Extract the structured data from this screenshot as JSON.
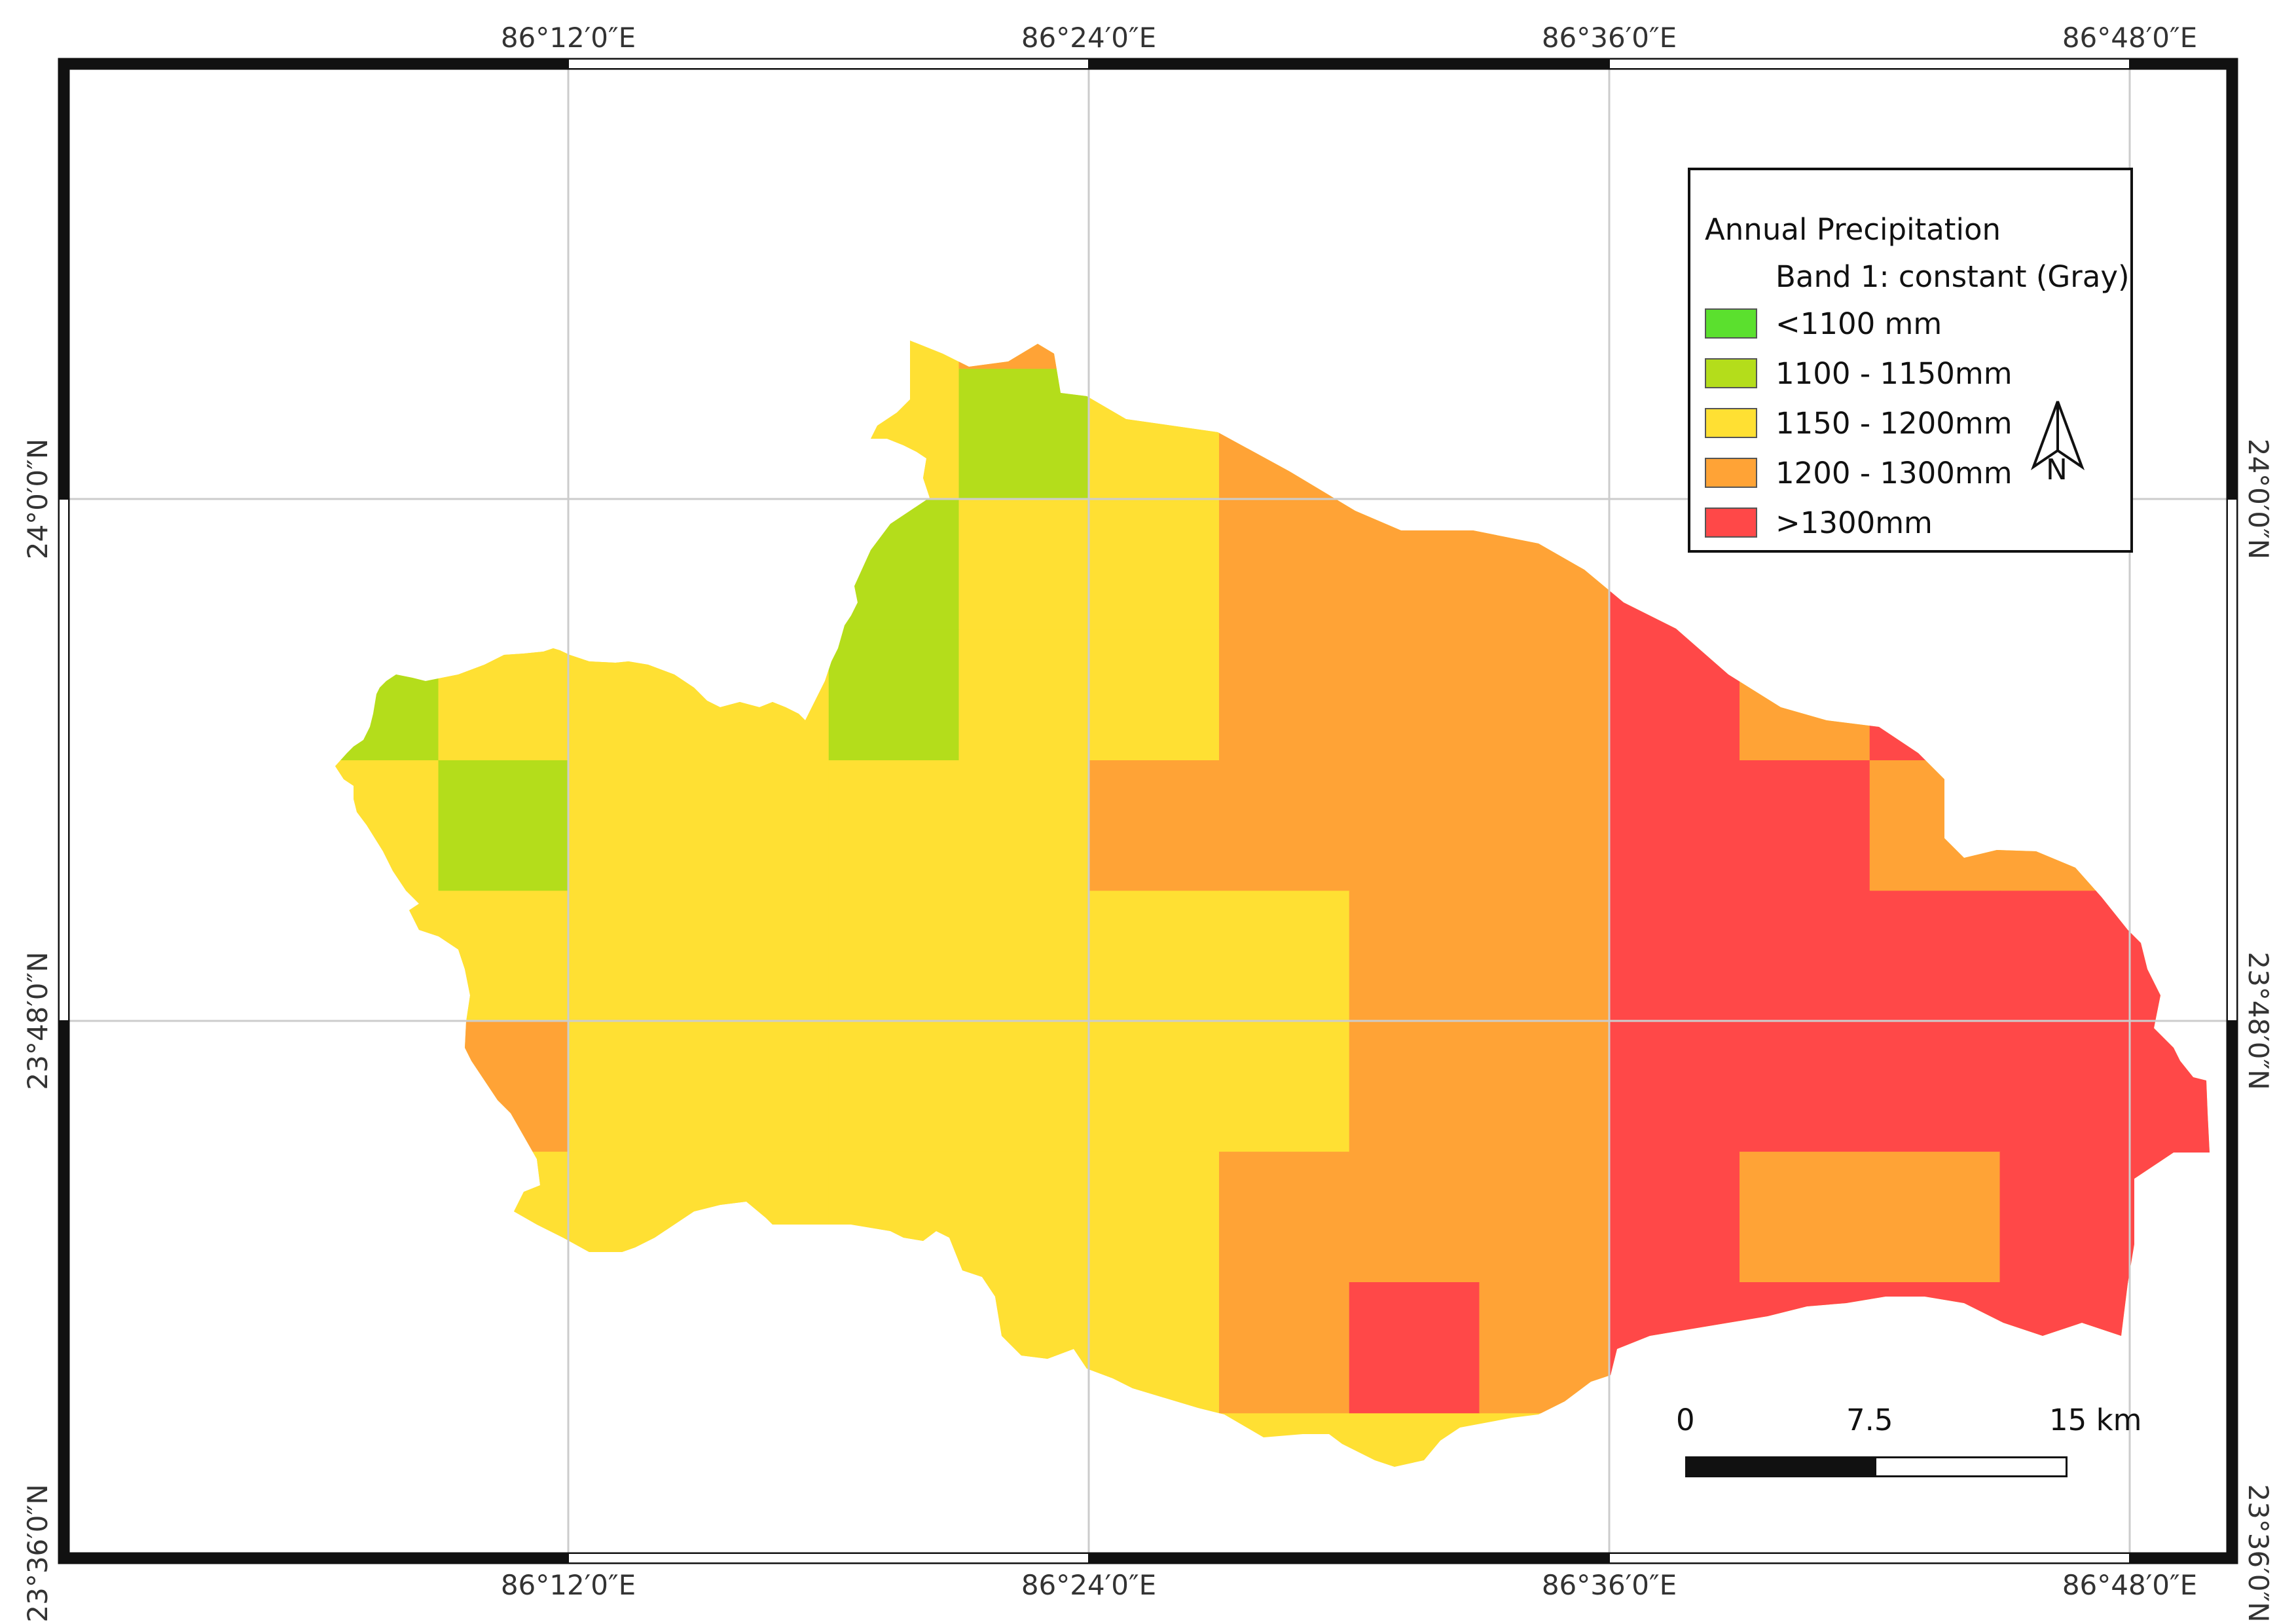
{
  "map": {
    "top_longitudes": [
      "86°12′0″E",
      "86°24′0″E",
      "86°36′0″E",
      "86°48′0″E"
    ],
    "bottom_longitudes": [
      "86°12′0″E",
      "86°24′0″E",
      "86°36′0″E",
      "86°48′0″E"
    ],
    "left_latitudes": [
      "24°0′0″N",
      "23°48′0″N",
      "23°36′0″N"
    ],
    "right_latitudes": [
      "24°0′0″N",
      "23°48′0″N",
      "23°36′0″N"
    ]
  },
  "legend": {
    "title": "Annual Precipitation",
    "subtitle": "Band 1: constant (Gray)",
    "classes": [
      {
        "label": "<1100 mm",
        "color": "#5be02e"
      },
      {
        "label": "1100 - 1150mm",
        "color": "#b4dd1b"
      },
      {
        "label": "1150 - 1200mm",
        "color": "#ffe033"
      },
      {
        "label": "1200 - 1300mm",
        "color": "#ffa336"
      },
      {
        "label": ">1300mm",
        "color": "#ff4848"
      }
    ]
  },
  "north_arrow": {
    "letter": "N"
  },
  "scale": {
    "labels": [
      "0",
      "7.5",
      "15 km"
    ]
  }
}
